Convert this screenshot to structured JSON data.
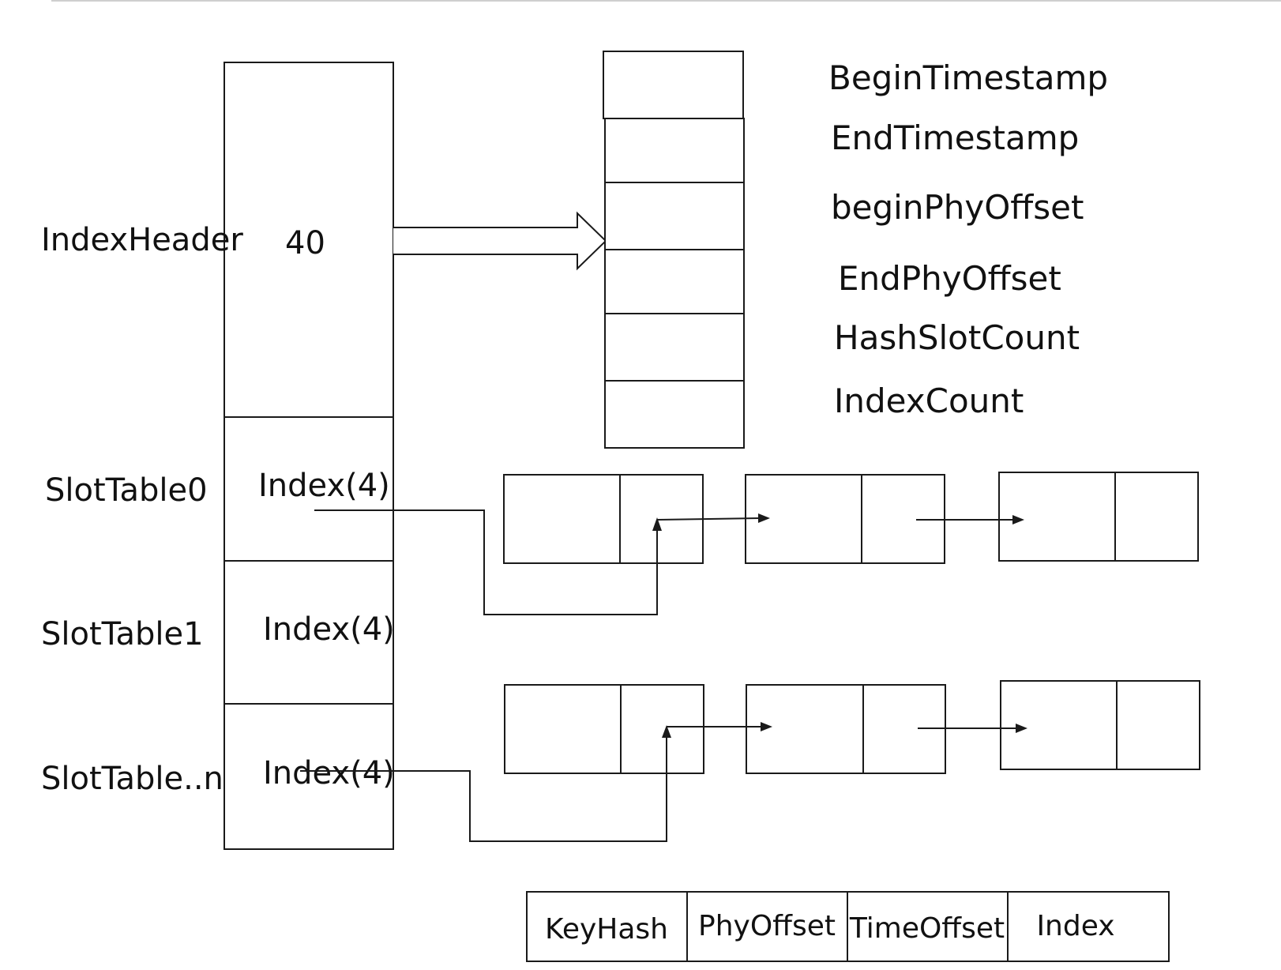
{
  "index_header": {
    "label": "IndexHeader",
    "size": "40",
    "fields": [
      "BeginTimestamp",
      "EndTimestamp",
      "beginPhyOffset",
      "EndPhyOffset",
      "HashSlotCount",
      "IndexCount"
    ]
  },
  "slot_tables": [
    {
      "label": "SlotTable0",
      "cell": "Index(4)"
    },
    {
      "label": "SlotTable1",
      "cell": "Index(4)"
    },
    {
      "label": "SlotTable..n",
      "cell": "Index(4)"
    }
  ],
  "index_entry": {
    "fields": [
      "KeyHash",
      "PhyOffset",
      "TimeOffset",
      "Index"
    ]
  }
}
